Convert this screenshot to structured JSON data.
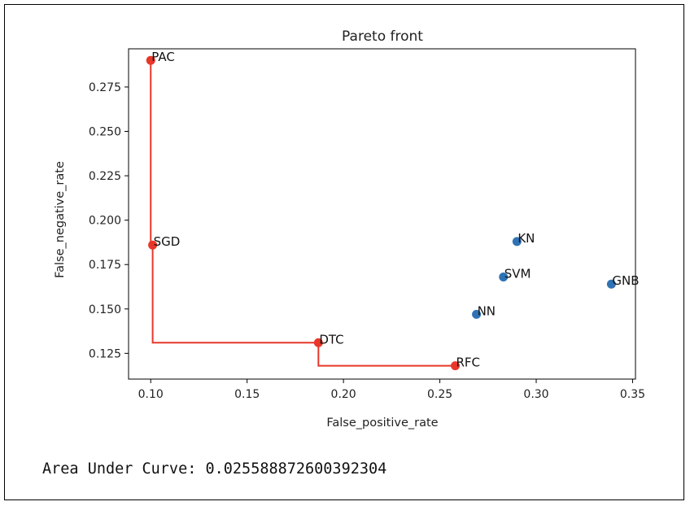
{
  "colors": {
    "pareto": "#e8372a",
    "other": "#2f73b5",
    "axes": "#000000"
  },
  "output": {
    "auc_label": "Area Under Curve:",
    "auc_value": "0.025588872600392304"
  },
  "chart_data": {
    "type": "scatter",
    "title": "Pareto front",
    "xlabel": "False_positive_rate",
    "ylabel": "False_negative_rate",
    "xlim": [
      0.0885,
      0.3515
    ],
    "ylim": [
      0.1105,
      0.2965
    ],
    "xticks": [
      "0.10",
      "0.15",
      "0.20",
      "0.25",
      "0.30",
      "0.35"
    ],
    "xtick_values": [
      0.1,
      0.15,
      0.2,
      0.25,
      0.3,
      0.35
    ],
    "yticks": [
      "0.125",
      "0.150",
      "0.175",
      "0.200",
      "0.225",
      "0.250",
      "0.275"
    ],
    "ytick_values": [
      0.125,
      0.15,
      0.175,
      0.2,
      0.225,
      0.25,
      0.275
    ],
    "grid": false,
    "points": [
      {
        "label": "PAC",
        "x": 0.1,
        "y": 0.29,
        "pareto": true
      },
      {
        "label": "SGD",
        "x": 0.101,
        "y": 0.186,
        "pareto": true
      },
      {
        "label": "DTC",
        "x": 0.187,
        "y": 0.131,
        "pareto": true
      },
      {
        "label": "RFC",
        "x": 0.258,
        "y": 0.118,
        "pareto": true
      },
      {
        "label": "NN",
        "x": 0.269,
        "y": 0.147,
        "pareto": false
      },
      {
        "label": "SVM",
        "x": 0.283,
        "y": 0.168,
        "pareto": false
      },
      {
        "label": "KN",
        "x": 0.29,
        "y": 0.188,
        "pareto": false
      },
      {
        "label": "GNB",
        "x": 0.339,
        "y": 0.164,
        "pareto": false
      }
    ],
    "pareto_step_line": [
      {
        "x": 0.1,
        "y": 0.29
      },
      {
        "x": 0.101,
        "y": 0.186
      },
      {
        "x": 0.187,
        "y": 0.131
      },
      {
        "x": 0.258,
        "y": 0.118
      }
    ]
  }
}
